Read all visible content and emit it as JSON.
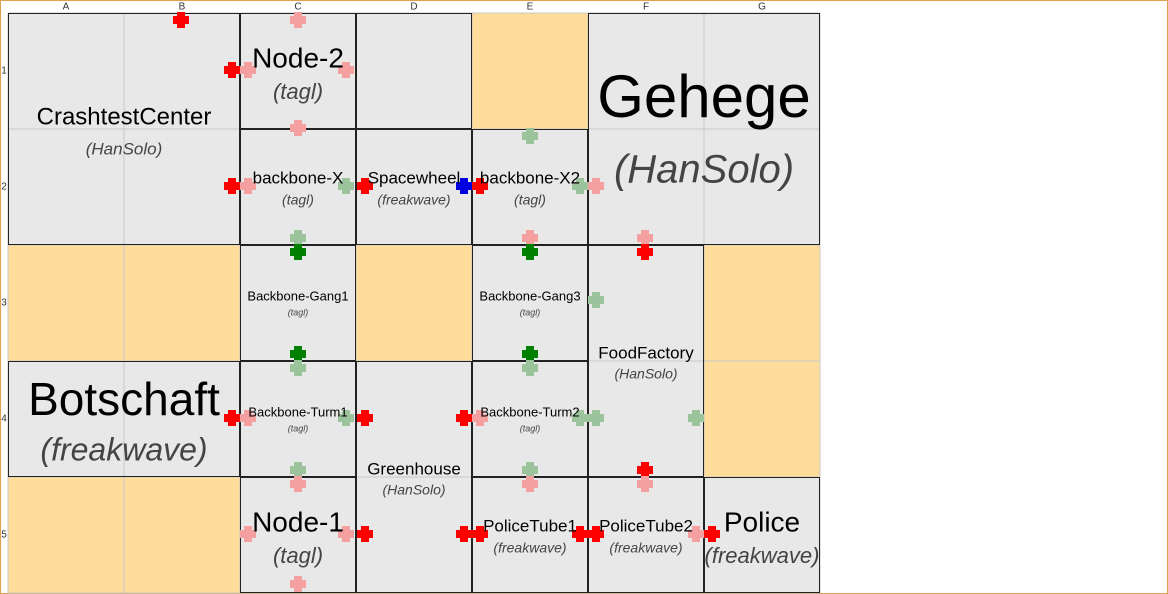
{
  "columns": [
    "A",
    "B",
    "C",
    "D",
    "E",
    "F",
    "G"
  ],
  "rows": [
    "1",
    "2",
    "3",
    "4",
    "5"
  ],
  "modules": [
    {
      "name": "CrashtestCenter",
      "owner": "(HanSolo)"
    },
    {
      "name": "Node-2",
      "owner": "(tagl)"
    },
    {
      "name": "Gehege",
      "owner": "(HanSolo)"
    },
    {
      "name": "backbone-X",
      "owner": "(tagl)"
    },
    {
      "name": "Spacewheel",
      "owner": "(freakwave)"
    },
    {
      "name": "backbone-X2",
      "owner": "(tagl)"
    },
    {
      "name": "Backbone-Gang1",
      "owner": "(tagl)"
    },
    {
      "name": "Backbone-Gang3",
      "owner": "(tagl)"
    },
    {
      "name": "FoodFactory",
      "owner": "(HanSolo)"
    },
    {
      "name": "Botschaft",
      "owner": "(freakwave)"
    },
    {
      "name": "Backbone-Turm1",
      "owner": "(tagl)"
    },
    {
      "name": "Greenhouse",
      "owner": "(HanSolo)"
    },
    {
      "name": "Backbone-Turm2",
      "owner": "(tagl)"
    },
    {
      "name": "Node-1",
      "owner": "(tagl)"
    },
    {
      "name": "PoliceTube1",
      "owner": "(freakwave)"
    },
    {
      "name": "PoliceTube2",
      "owner": "(freakwave)"
    },
    {
      "name": "Police",
      "owner": "(freakwave)"
    }
  ]
}
